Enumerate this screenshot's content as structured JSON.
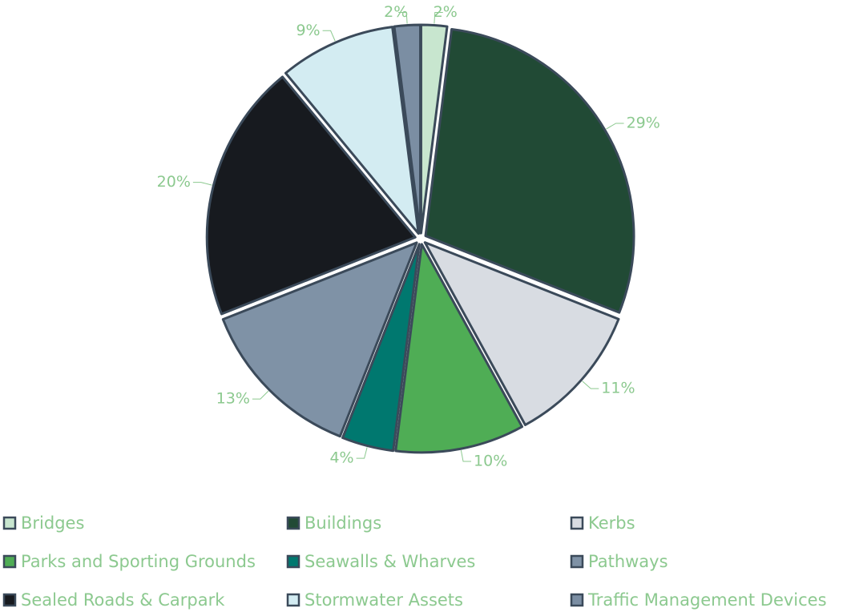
{
  "chart_data": {
    "type": "pie",
    "categories": [
      "Bridges",
      "Buildings",
      "Kerbs",
      "Parks and Sporting Grounds",
      "Seawalls & Wharves",
      "Pathways",
      "Sealed Roads & Carpark",
      "Stormwater Assets",
      "Traffic Management Devices"
    ],
    "values": [
      2,
      29,
      11,
      10,
      4,
      13,
      20,
      9,
      2
    ],
    "value_labels": [
      "2%",
      "29%",
      "11%",
      "10%",
      "4%",
      "13%",
      "20%",
      "9%",
      "2%"
    ],
    "colors": [
      "#c8e6cf",
      "#214a35",
      "#d8dce2",
      "#4fad55",
      "#00786f",
      "#7f92a6",
      "#171a1f",
      "#d3ecf2",
      "#7b8ea3"
    ],
    "legend": "bottom"
  }
}
